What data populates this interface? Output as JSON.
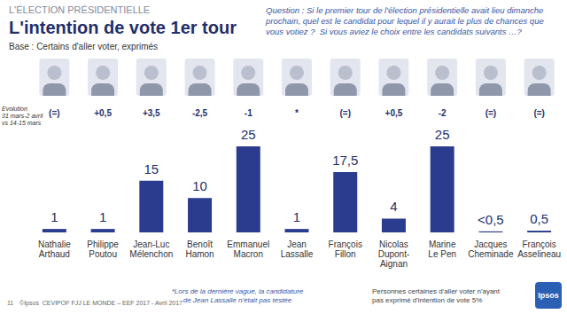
{
  "chart_data": {
    "type": "bar",
    "header": "L'ÉLECTION PRÉSIDENTIELLE",
    "title": "L'intention de vote 1er tour",
    "subtitle": "Base : Certains d'aller voter, exprimés",
    "question": "Question : Si le premier tour de l'élection présidentielle avait lieu dimanche prochain, quel est le candidat pour lequel il y aurait le plus de chances que vous votiez ?  Si vous aviez le choix entre les candidats suivants …?",
    "evolution": {
      "label": [
        "Evolution",
        "31 mars-2 avril",
        "vs 14-15 mars"
      ],
      "values": [
        "(=)",
        "+0,5",
        "+3,5",
        "-2,5",
        "-1",
        "*",
        "(=)",
        "+0,5",
        "-2",
        "(=)",
        "(=)"
      ]
    },
    "categories": [
      "Nathalie Arthaud",
      "Philippe Poutou",
      "Jean-Luc Mélenchon",
      "Benoît Hamon",
      "Emmanuel Macron",
      "Jean Lassalle",
      "François Fillon",
      "Nicolas Dupont-Aignan",
      "Marine Le Pen",
      "Jacques Cheminade",
      "François Asselineau"
    ],
    "values": [
      1,
      1,
      15,
      10,
      25,
      1,
      17.5,
      4,
      25,
      0.3,
      0.5
    ],
    "value_labels": [
      "1",
      "1",
      "15",
      "10",
      "25",
      "1",
      "17,5",
      "4",
      "25",
      "<0,5",
      "0,5"
    ],
    "color": "#2b3c8e",
    "data_labels": true,
    "tick_labels": "x",
    "grid": false,
    "ylim": [
      0,
      25
    ],
    "footnotes": [
      [
        "*Lors de la dernière vague, la candidature",
        "de Jean Lassalle n'était pas testée"
      ],
      [
        "Personnes certaines d'aller voter n'ayant",
        "pas exprimé d'intention de vote 5%"
      ]
    ],
    "page": "11",
    "source": "©Ipsos  CEVIPOF FJJ LE MONDE – EEF 2017 - Avril 2017",
    "logo": "Ipsos"
  }
}
